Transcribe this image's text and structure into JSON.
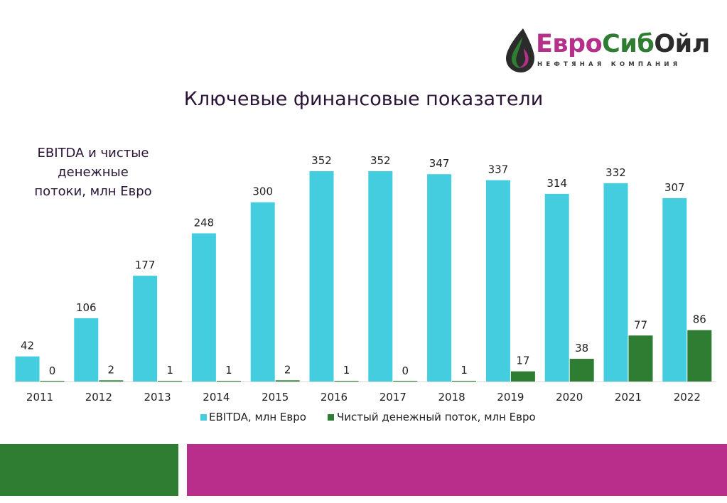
{
  "logo": {
    "name_part1": "Евро",
    "name_part2": "Сиб",
    "name_part3": "Ойл",
    "subtitle": "НЕФТЯНАЯ КОМПАНИЯ"
  },
  "page_title": "Ключевые финансовые показатели",
  "chart_title_line1": "EBITDA и чистые денежные",
  "chart_title_line2": "потоки, млн Евро",
  "colors": {
    "ebitda": "#43cddf",
    "net_cash_flow": "#2e7d32",
    "brand_purple": "#b82e8a",
    "brand_green": "#2e7d32"
  },
  "chart_data": {
    "type": "bar",
    "title": "EBITDA и чистые денежные потоки, млн Евро",
    "categories": [
      "2011",
      "2012",
      "2013",
      "2014",
      "2015",
      "2016",
      "2017",
      "2018",
      "2019",
      "2020",
      "2021",
      "2022"
    ],
    "series": [
      {
        "name": "EBITDA, млн Евро",
        "values": [
          42,
          106,
          177,
          248,
          300,
          352,
          352,
          347,
          337,
          314,
          332,
          307
        ]
      },
      {
        "name": "Чистый денежный поток, млн Евро",
        "values": [
          0,
          2,
          1,
          1,
          2,
          1,
          0,
          1,
          17,
          38,
          77,
          86
        ]
      }
    ],
    "xlabel": "",
    "ylabel": "",
    "ylim": [
      0,
      352
    ],
    "data_labels": true,
    "grid": false,
    "legend_position": "bottom"
  }
}
